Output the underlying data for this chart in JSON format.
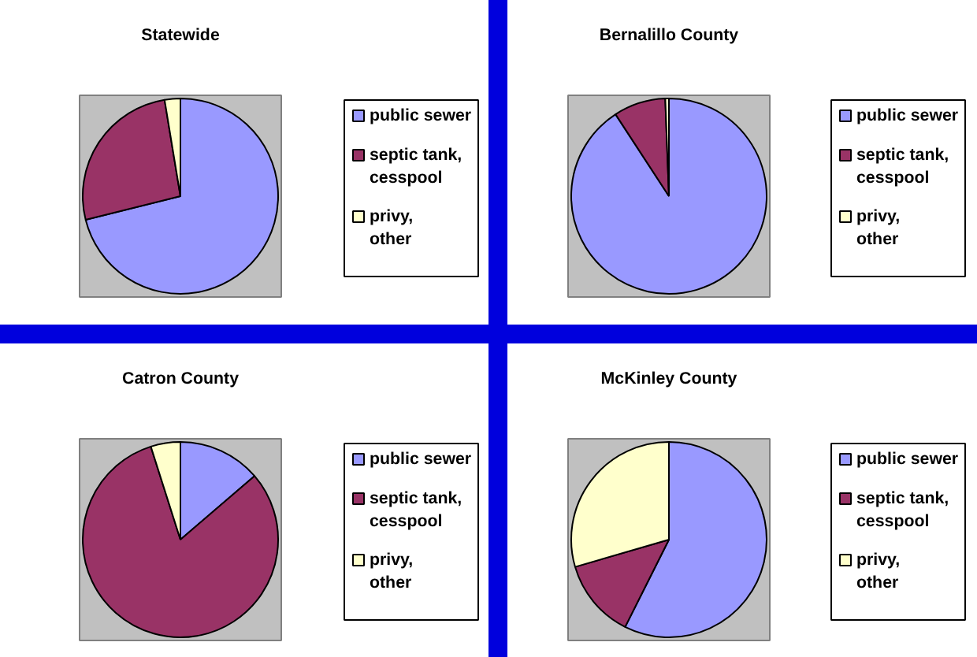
{
  "chart_data": [
    {
      "type": "pie",
      "title": "Statewide",
      "categories": [
        "public sewer",
        "septic tank, cesspool",
        "privy, other"
      ],
      "values": [
        71.1,
        26.3,
        2.6
      ],
      "colors": [
        "#9999ff",
        "#993366",
        "#ffffcc"
      ],
      "legend": "right"
    },
    {
      "type": "pie",
      "title": "Bernalillo County",
      "categories": [
        "public sewer",
        "septic tank, cesspool",
        "privy, other"
      ],
      "values": [
        90.8,
        8.6,
        0.6
      ],
      "colors": [
        "#9999ff",
        "#993366",
        "#ffffcc"
      ],
      "legend": "right"
    },
    {
      "type": "pie",
      "title": "Catron County",
      "categories": [
        "public sewer",
        "septic tank, cesspool",
        "privy, other"
      ],
      "values": [
        13.7,
        81.4,
        4.9
      ],
      "colors": [
        "#9999ff",
        "#993366",
        "#ffffcc"
      ],
      "legend": "right"
    },
    {
      "type": "pie",
      "title": "McKinley County",
      "categories": [
        "public sewer",
        "septic tank, cesspool",
        "privy, other"
      ],
      "values": [
        57.4,
        13.1,
        29.5
      ],
      "colors": [
        "#9999ff",
        "#993366",
        "#ffffcc"
      ],
      "legend": "right"
    }
  ]
}
